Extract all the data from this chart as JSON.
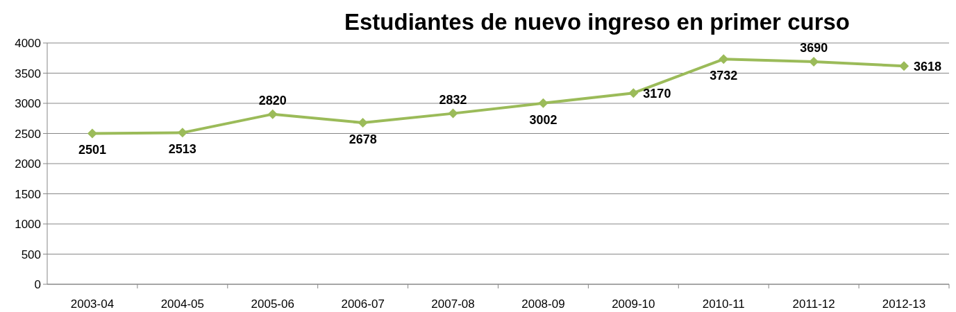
{
  "chart_data": {
    "type": "line",
    "title": "Estudiantes de nuevo ingreso en primer curso",
    "categories": [
      "2003-04",
      "2004-05",
      "2005-06",
      "2006-07",
      "2007-08",
      "2008-09",
      "2009-10",
      "2010-11",
      "2011-12",
      "2012-13"
    ],
    "series": [
      {
        "color": "#9bbb59",
        "values": [
          2501,
          2513,
          2820,
          2678,
          2832,
          3002,
          3170,
          3732,
          3690,
          3618
        ]
      }
    ],
    "ylim": [
      0,
      4000
    ],
    "yticks": [
      0,
      500,
      1000,
      1500,
      2000,
      2500,
      3000,
      3500,
      4000
    ],
    "grid": "y",
    "marker": "diamond",
    "line_style": "solid",
    "data_labels": true
  }
}
